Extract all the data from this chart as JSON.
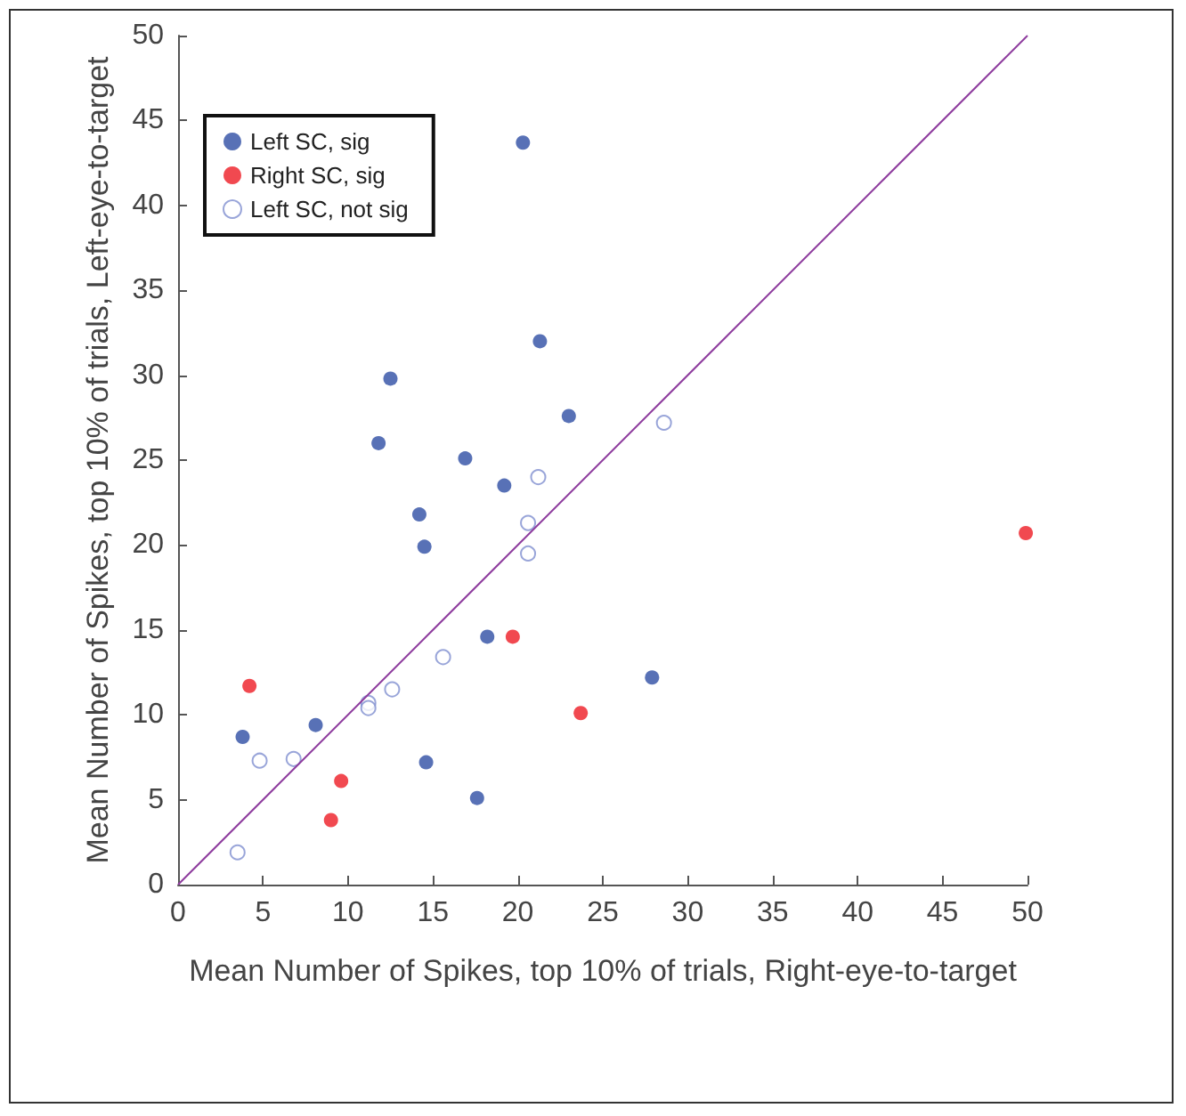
{
  "chart_data": {
    "type": "scatter",
    "xlabel": "Mean Number of Spikes, top 10% of trials, Right-eye-to-target",
    "ylabel": "Mean Number of Spikes, top 10% of trials, Left-eye-to-target",
    "xlim": [
      0,
      50
    ],
    "ylim": [
      0,
      50
    ],
    "xticks": [
      0,
      5,
      10,
      15,
      20,
      25,
      30,
      35,
      40,
      45,
      50
    ],
    "yticks": [
      0,
      5,
      10,
      15,
      20,
      25,
      30,
      35,
      40,
      45,
      50
    ],
    "grid": false,
    "legend": "top left",
    "marker": "circle",
    "series": [
      {
        "name": "Left SC, sig",
        "color": "#2e4ea4",
        "x": [
          20.3,
          21.3,
          12.5,
          23,
          11.8,
          16.9,
          19.2,
          14.2,
          14.5,
          18.2,
          27.9,
          3.8,
          8.1,
          14.6,
          17.6
        ],
        "values": [
          43.7,
          32,
          29.8,
          27.6,
          26,
          25.1,
          23.5,
          21.8,
          19.9,
          14.6,
          12.2,
          8.7,
          9.4,
          7.2,
          5.1
        ]
      },
      {
        "name": "Right SC, sig",
        "color": "#ee1c24",
        "x": [
          4.2,
          9.6,
          9,
          19.7,
          23.7,
          49.9
        ],
        "values": [
          11.7,
          6.1,
          3.8,
          14.6,
          10.1,
          20.7
        ]
      },
      {
        "name": "Left SC, not sig",
        "color": "#7f8fd0",
        "marker": "open circle",
        "x": [
          28.6,
          21.2,
          20.6,
          20.6,
          15.6,
          12.6,
          11.2,
          11.2,
          6.8,
          4.8,
          3.5
        ],
        "values": [
          27.2,
          24,
          21.3,
          19.5,
          13.4,
          11.5,
          10.7,
          10.4,
          7.4,
          7.3,
          1.9
        ]
      },
      {
        "type": "line",
        "color": "#8e3c9e",
        "marker": "none",
        "x": [
          0,
          50
        ],
        "values": [
          0,
          50
        ]
      }
    ]
  }
}
